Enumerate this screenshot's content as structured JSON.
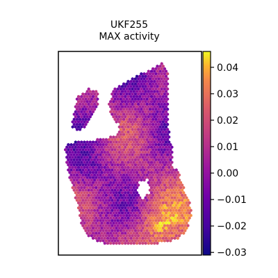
{
  "chart_data": {
    "type": "scatter",
    "title": "UKF255\nMAX activity",
    "colormap": "plasma",
    "colorbar": {
      "vmin": -0.031,
      "vmax": 0.046,
      "ticks": [
        0.04,
        0.03,
        0.02,
        0.01,
        0.0,
        -0.01,
        -0.02,
        -0.03
      ],
      "tick_labels": [
        "0.04",
        "0.03",
        "0.02",
        "0.01",
        "0.00",
        "−0.01",
        "−0.02",
        "−0.03"
      ]
    },
    "spots": {
      "description_of_pattern": "spatial hexagonal spot map",
      "marker": "hexagon"
    },
    "xlabel": "",
    "ylabel": ""
  }
}
